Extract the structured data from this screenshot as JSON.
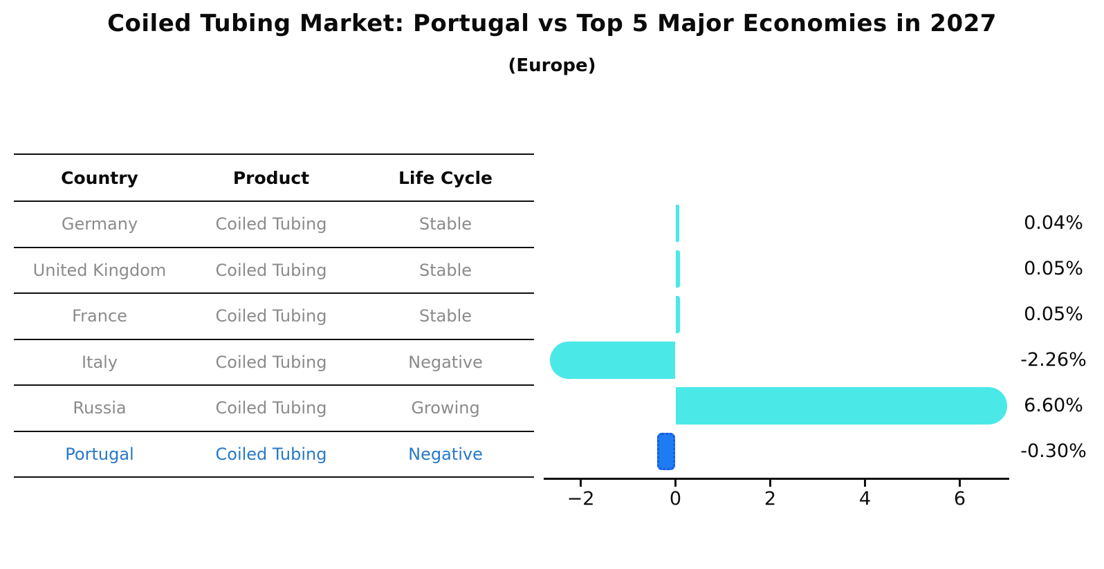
{
  "header": {
    "title": "Coiled Tubing Market: Portugal vs Top 5 Major Economies in 2027",
    "subtitle": "(Europe)"
  },
  "table": {
    "columns": [
      "Country",
      "Product",
      "Life Cycle"
    ],
    "rows": [
      {
        "country": "Germany",
        "product": "Coiled Tubing",
        "life_cycle": "Stable"
      },
      {
        "country": "United Kingdom",
        "product": "Coiled Tubing",
        "life_cycle": "Stable"
      },
      {
        "country": "France",
        "product": "Coiled Tubing",
        "life_cycle": "Stable"
      },
      {
        "country": "Italy",
        "product": "Coiled Tubing",
        "life_cycle": "Negative"
      },
      {
        "country": "Russia",
        "product": "Coiled Tubing",
        "life_cycle": "Growing"
      },
      {
        "country": "Portugal",
        "product": "Coiled Tubing",
        "life_cycle": "Negative"
      }
    ]
  },
  "chart_data": {
    "type": "bar",
    "orientation": "horizontal",
    "title": "Coiled Tubing Market: Portugal vs Top 5 Major Economies in 2027 (Europe)",
    "categories": [
      "Germany",
      "United Kingdom",
      "France",
      "Italy",
      "Russia",
      "Portugal"
    ],
    "values": [
      0.04,
      0.05,
      0.05,
      -2.26,
      6.6,
      -0.3
    ],
    "value_labels": [
      "0.04%",
      "0.05%",
      "0.05%",
      "-2.26%",
      "6.60%",
      "-0.30%"
    ],
    "xticks": [
      -2,
      0,
      2,
      4,
      6
    ],
    "xtick_labels": [
      "−2",
      "0",
      "2",
      "4",
      "6"
    ],
    "xlim": [
      -2.78,
      7.04
    ],
    "xlabel": "",
    "ylabel": "",
    "grid": false,
    "legend": false,
    "bar_color": "#4BE8E8",
    "highlight_color": "#1F7BF2",
    "highlight_index": 5
  },
  "colors": {
    "bar_cyan": "#4BE8E8",
    "highlight_blue": "#1F7BF2",
    "highlight_border": "#1458E8",
    "highlight_text": "#2878C8",
    "table_text_gray": "#8B8B8B",
    "line_black": "#0F0F0F"
  }
}
